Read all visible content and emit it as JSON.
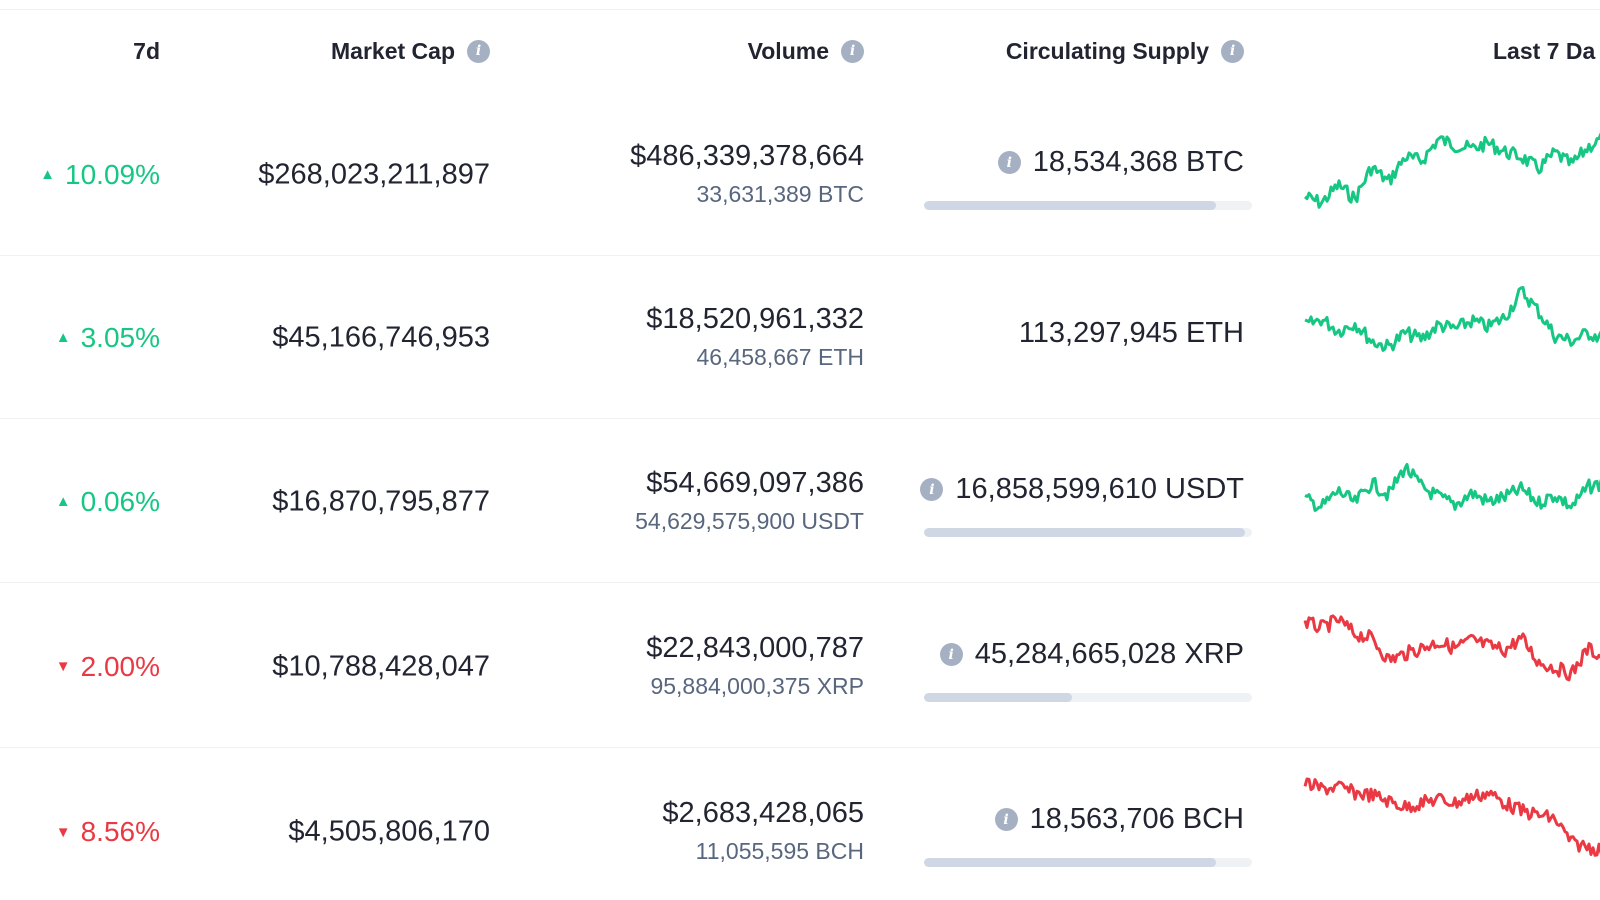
{
  "header": {
    "col_7d": "7d",
    "col_market_cap": "Market Cap",
    "col_volume": "Volume",
    "col_supply": "Circulating Supply",
    "col_last7": "Last 7 Da",
    "info_glyph": "i"
  },
  "colors": {
    "up": "#16c784",
    "down": "#ea3943",
    "muted": "#58667e",
    "bar": "#cfd6e4"
  },
  "rows": [
    {
      "change_7d": "10.09%",
      "direction": "up",
      "triangle": "▲",
      "market_cap": "$268,023,211,897",
      "volume_usd": "$486,339,378,664",
      "volume_coin": "33,631,389 BTC",
      "supply": "18,534,368 BTC",
      "supply_info": true,
      "supply_fraction": 0.89,
      "spark_trend": "up"
    },
    {
      "change_7d": "3.05%",
      "direction": "up",
      "triangle": "▲",
      "market_cap": "$45,166,746,953",
      "volume_usd": "$18,520,961,332",
      "volume_coin": "46,458,667 ETH",
      "supply": "113,297,945 ETH",
      "supply_info": false,
      "supply_fraction": null,
      "spark_trend": "up"
    },
    {
      "change_7d": "0.06%",
      "direction": "up",
      "triangle": "▲",
      "market_cap": "$16,870,795,877",
      "volume_usd": "$54,669,097,386",
      "volume_coin": "54,629,575,900 USDT",
      "supply": "16,858,599,610 USDT",
      "supply_info": true,
      "supply_fraction": 0.98,
      "spark_trend": "up"
    },
    {
      "change_7d": "2.00%",
      "direction": "down",
      "triangle": "▼",
      "market_cap": "$10,788,428,047",
      "volume_usd": "$22,843,000,787",
      "volume_coin": "95,884,000,375 XRP",
      "supply": "45,284,665,028 XRP",
      "supply_info": true,
      "supply_fraction": 0.45,
      "spark_trend": "down"
    },
    {
      "change_7d": "8.56%",
      "direction": "down",
      "triangle": "▼",
      "market_cap": "$4,505,806,170",
      "volume_usd": "$2,683,428,065",
      "volume_coin": "11,055,595 BCH",
      "supply": "18,563,706 BCH",
      "supply_info": true,
      "supply_fraction": 0.89,
      "spark_trend": "down"
    }
  ]
}
